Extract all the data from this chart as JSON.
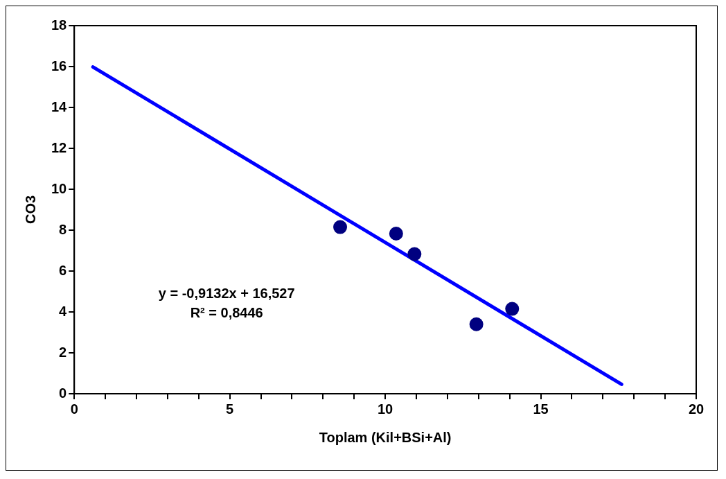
{
  "chart_data": {
    "type": "scatter",
    "xlabel": "Toplam (Kil+BSi+Al)",
    "ylabel": "CO3",
    "annotations": [
      "y = -0,9132x + 16,527",
      "R² = 0,8446"
    ],
    "series": [
      {
        "color": "#000080",
        "x": [
          8.55,
          10.35,
          10.94,
          12.93,
          14.08
        ],
        "values": [
          8.15,
          7.83,
          6.83,
          3.4,
          4.15
        ],
        "marker": "circle"
      },
      {
        "type": "line",
        "color": "#0000ff",
        "x": [
          0.6,
          17.6
        ],
        "values": [
          15.98,
          0.46
        ],
        "marker": "none",
        "line_style": "solid"
      }
    ],
    "xlim": [
      0,
      20
    ],
    "xticks": [
      0,
      {
        "value": 1,
        "label": null
      },
      {
        "value": 2,
        "label": null
      },
      {
        "value": 3,
        "label": null
      },
      {
        "value": 4,
        "label": null
      },
      5,
      {
        "value": 6,
        "label": null
      },
      {
        "value": 7,
        "label": null
      },
      {
        "value": 8,
        "label": null
      },
      {
        "value": 9,
        "label": null
      },
      10,
      {
        "value": 11,
        "label": null
      },
      {
        "value": 12,
        "label": null
      },
      {
        "value": 13,
        "label": null
      },
      {
        "value": 14,
        "label": null
      },
      15,
      {
        "value": 16,
        "label": null
      },
      {
        "value": 17,
        "label": null
      },
      {
        "value": 18,
        "label": null
      },
      {
        "value": 19,
        "label": null
      },
      20
    ],
    "ylim": [
      0,
      18
    ],
    "yticks": [
      0,
      2,
      4,
      6,
      8,
      10,
      12,
      14,
      16,
      18
    ],
    "grid": false,
    "legend": false
  }
}
